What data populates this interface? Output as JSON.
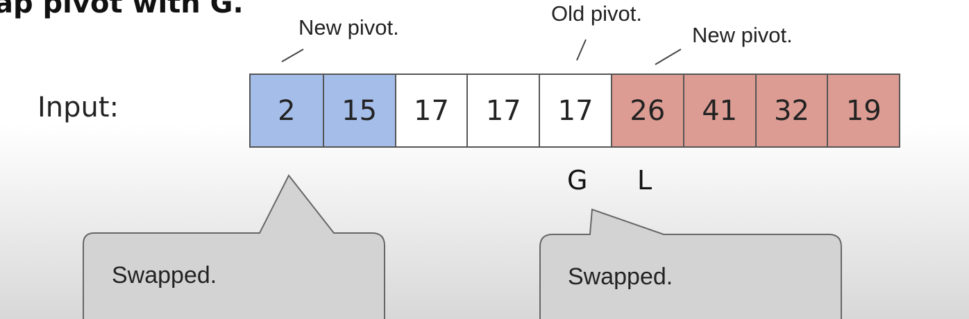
{
  "title": "ap pivot with G.",
  "annotations": {
    "new_pivot_left": "New pivot.",
    "old_pivot": "Old pivot.",
    "new_pivot_right": "New pivot."
  },
  "input_label": "Input:",
  "cells": [
    {
      "value": "2",
      "state": "blue"
    },
    {
      "value": "15",
      "state": "blue"
    },
    {
      "value": "17",
      "state": "white"
    },
    {
      "value": "17",
      "state": "white"
    },
    {
      "value": "17",
      "state": "white"
    },
    {
      "value": "26",
      "state": "red"
    },
    {
      "value": "41",
      "state": "red"
    },
    {
      "value": "32",
      "state": "red"
    },
    {
      "value": "19",
      "state": "red"
    }
  ],
  "markers": {
    "g": "G",
    "l": "L"
  },
  "callouts": {
    "left": "Swapped.",
    "right": "Swapped."
  },
  "colors": {
    "blue_cell": "#a4bde9",
    "red_cell": "#dc9c93",
    "callout_fill": "#d3d3d3"
  }
}
